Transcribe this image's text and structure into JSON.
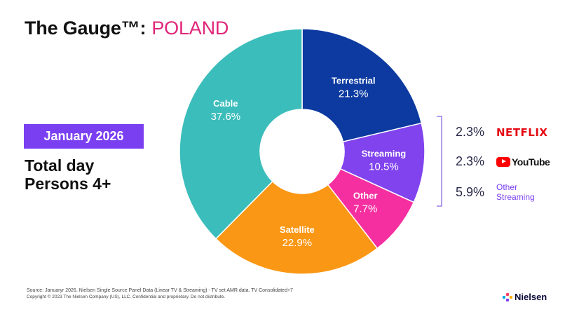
{
  "header": {
    "title": "The Gauge™:",
    "country": "POLAND"
  },
  "period": {
    "month": "January 2026",
    "daypart_line1": "Total day",
    "daypart_line2": "Persons 4+"
  },
  "chart_data": {
    "type": "pie",
    "donut": true,
    "categories": [
      "Terrestrial",
      "Streaming",
      "Other",
      "Satellite",
      "Cable"
    ],
    "values": [
      21.3,
      10.5,
      7.7,
      22.9,
      37.6
    ],
    "labels": [
      "21.3%",
      "10.5%",
      "7.7%",
      "22.9%",
      "37.6%"
    ],
    "colors": [
      "#0c3aa0",
      "#8043ee",
      "#f52fa0",
      "#fa9714",
      "#3bbdbb"
    ],
    "streaming_breakdown": [
      {
        "name": "NETFLIX",
        "value": 2.3,
        "label": "2.3%",
        "logo": "netflix-logo"
      },
      {
        "name": "YouTube",
        "value": 2.3,
        "label": "2.3%",
        "logo": "youtube-logo"
      },
      {
        "name": "Other Streaming",
        "name_line1": "Other",
        "name_line2": "Streaming",
        "value": 5.9,
        "label": "5.9%"
      }
    ]
  },
  "footer": {
    "source": "Source: Januaryr 2026, Nielsen Single Source Panel Data (Linear TV & Streaming) - TV set AMR data, TV Consolidated+7",
    "copyright": "Copyright © 2023 The Nielsen Company (US), LLC. Confidential and proprietary. Do not distribute."
  },
  "brand": {
    "name": "Nielsen",
    "icon": "nielsen-logo-mark"
  }
}
